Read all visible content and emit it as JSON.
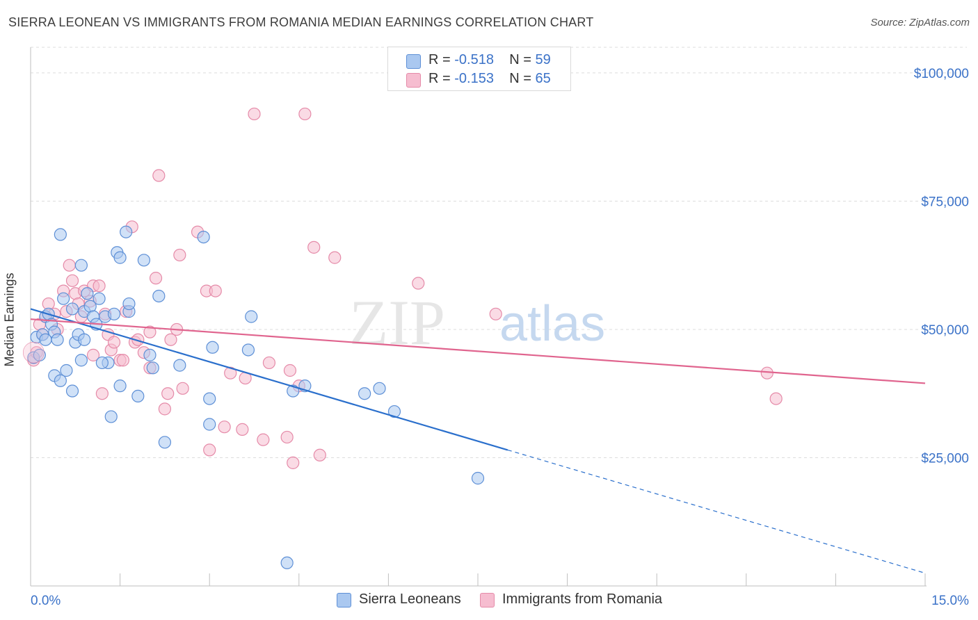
{
  "header": {
    "title": "SIERRA LEONEAN VS IMMIGRANTS FROM ROMANIA MEDIAN EARNINGS CORRELATION CHART",
    "source": "Source: ZipAtlas.com"
  },
  "watermark": {
    "zip": "ZIP",
    "atlas": "atlas"
  },
  "legend": {
    "rows": [
      {
        "r_label": "R = ",
        "r_value": "-0.518",
        "n_label": "N = ",
        "n_value": "59"
      },
      {
        "r_label": "R = ",
        "r_value": "-0.153",
        "n_label": "N = ",
        "n_value": "65"
      }
    ]
  },
  "bottom_legend": {
    "series1": "Sierra Leoneans",
    "series2": "Immigrants from Romania"
  },
  "colors": {
    "blue_fill": "#aac8f0",
    "blue_stroke": "#5d8fd6",
    "blue_line": "#2a6fcc",
    "pink_fill": "#f6bdd0",
    "pink_stroke": "#e58aa8",
    "pink_line": "#e0648e",
    "axis_label": "#3b72c8",
    "grid": "#dcdcdc"
  },
  "chart_data": {
    "type": "scatter",
    "title": "SIERRA LEONEAN VS IMMIGRANTS FROM ROMANIA MEDIAN EARNINGS CORRELATION CHART",
    "xlabel": "",
    "ylabel": "Median Earnings",
    "xlim": [
      0,
      15
    ],
    "ylim": [
      0,
      105000
    ],
    "x_tick_labels": [
      "0.0%",
      "15.0%"
    ],
    "y_ticks": [
      25000,
      50000,
      75000,
      100000
    ],
    "y_tick_labels": [
      "$25,000",
      "$50,000",
      "$75,000",
      "$100,000"
    ],
    "grid": true,
    "legend_position": "top-center",
    "series": [
      {
        "name": "Sierra Leoneans",
        "color": "#aac8f0",
        "r": -0.518,
        "n": 59,
        "trend": {
          "x0": 0,
          "y0": 54000,
          "x1": 8.0,
          "y1": 26500,
          "dashed_to_x": 15,
          "dashed_to_y": 2500
        },
        "points": [
          [
            0.05,
            44500
          ],
          [
            0.1,
            48500
          ],
          [
            0.15,
            45000
          ],
          [
            0.2,
            49000
          ],
          [
            0.25,
            48000
          ],
          [
            0.25,
            52500
          ],
          [
            0.3,
            53000
          ],
          [
            0.35,
            51000
          ],
          [
            0.4,
            49500
          ],
          [
            0.45,
            48000
          ],
          [
            0.5,
            68500
          ],
          [
            0.55,
            56000
          ],
          [
            0.6,
            42000
          ],
          [
            0.7,
            54000
          ],
          [
            0.75,
            47500
          ],
          [
            0.8,
            49000
          ],
          [
            0.85,
            44000
          ],
          [
            0.85,
            62500
          ],
          [
            0.9,
            48000
          ],
          [
            0.9,
            53500
          ],
          [
            0.95,
            57000
          ],
          [
            1.0,
            54500
          ],
          [
            1.05,
            52500
          ],
          [
            1.1,
            51000
          ],
          [
            1.15,
            56000
          ],
          [
            1.25,
            52500
          ],
          [
            1.3,
            43500
          ],
          [
            1.4,
            53000
          ],
          [
            1.45,
            65000
          ],
          [
            1.5,
            64000
          ],
          [
            1.5,
            39000
          ],
          [
            1.6,
            69000
          ],
          [
            1.65,
            53500
          ],
          [
            1.65,
            55000
          ],
          [
            1.8,
            37000
          ],
          [
            1.9,
            63500
          ],
          [
            2.0,
            45000
          ],
          [
            2.05,
            42500
          ],
          [
            2.15,
            56500
          ],
          [
            2.25,
            28000
          ],
          [
            2.5,
            43000
          ],
          [
            2.9,
            68000
          ],
          [
            3.0,
            31500
          ],
          [
            3.0,
            36500
          ],
          [
            3.05,
            46500
          ],
          [
            3.65,
            46000
          ],
          [
            3.7,
            52500
          ],
          [
            4.4,
            38000
          ],
          [
            4.6,
            39000
          ],
          [
            5.6,
            37500
          ],
          [
            5.85,
            38500
          ],
          [
            6.1,
            34000
          ],
          [
            7.5,
            21000
          ],
          [
            4.3,
            4500
          ],
          [
            1.2,
            43500
          ],
          [
            0.4,
            41000
          ],
          [
            0.5,
            40000
          ],
          [
            0.7,
            38000
          ],
          [
            1.35,
            33000
          ]
        ]
      },
      {
        "name": "Immigrants from Romania",
        "color": "#f6bdd0",
        "r": -0.153,
        "n": 65,
        "trend": {
          "x0": 0,
          "y0": 52000,
          "x1": 15,
          "y1": 39500
        },
        "points": [
          [
            0.05,
            44000
          ],
          [
            0.1,
            45500
          ],
          [
            0.15,
            51000
          ],
          [
            0.2,
            49000
          ],
          [
            0.25,
            52500
          ],
          [
            0.3,
            55000
          ],
          [
            0.4,
            53000
          ],
          [
            0.45,
            50000
          ],
          [
            0.55,
            57500
          ],
          [
            0.6,
            53500
          ],
          [
            0.65,
            62500
          ],
          [
            0.7,
            59500
          ],
          [
            0.75,
            57000
          ],
          [
            0.8,
            55000
          ],
          [
            0.85,
            52500
          ],
          [
            0.9,
            57500
          ],
          [
            1.0,
            55500
          ],
          [
            1.05,
            58500
          ],
          [
            1.05,
            45000
          ],
          [
            1.15,
            58500
          ],
          [
            1.2,
            37500
          ],
          [
            1.25,
            53000
          ],
          [
            1.3,
            49000
          ],
          [
            1.35,
            46000
          ],
          [
            1.4,
            47500
          ],
          [
            1.5,
            44000
          ],
          [
            1.55,
            44000
          ],
          [
            1.6,
            53500
          ],
          [
            1.7,
            70000
          ],
          [
            1.75,
            47500
          ],
          [
            1.8,
            48000
          ],
          [
            1.9,
            45500
          ],
          [
            2.0,
            42500
          ],
          [
            2.0,
            49500
          ],
          [
            2.1,
            60000
          ],
          [
            2.15,
            80000
          ],
          [
            2.25,
            34500
          ],
          [
            2.3,
            37500
          ],
          [
            2.35,
            48000
          ],
          [
            2.45,
            50000
          ],
          [
            2.5,
            64500
          ],
          [
            2.55,
            38500
          ],
          [
            2.8,
            69000
          ],
          [
            2.95,
            57500
          ],
          [
            3.0,
            26500
          ],
          [
            3.1,
            57500
          ],
          [
            3.25,
            31000
          ],
          [
            3.35,
            41500
          ],
          [
            3.55,
            30500
          ],
          [
            3.6,
            40500
          ],
          [
            3.75,
            92000
          ],
          [
            3.9,
            28500
          ],
          [
            4.0,
            43500
          ],
          [
            4.3,
            29000
          ],
          [
            4.35,
            42000
          ],
          [
            4.4,
            24000
          ],
          [
            4.5,
            39000
          ],
          [
            4.6,
            92000
          ],
          [
            4.75,
            66000
          ],
          [
            4.85,
            25500
          ],
          [
            5.1,
            64000
          ],
          [
            6.5,
            59000
          ],
          [
            7.8,
            53000
          ],
          [
            12.35,
            41500
          ],
          [
            12.5,
            36500
          ]
        ]
      }
    ]
  }
}
